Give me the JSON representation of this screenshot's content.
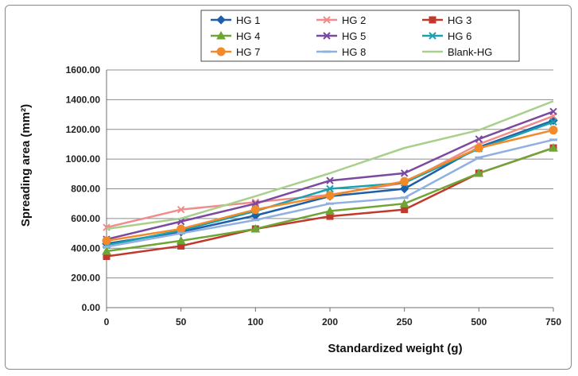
{
  "chart_data": {
    "type": "line",
    "xlabel": "Standardized weight (g)",
    "ylabel": "Spreading area (mm²)",
    "categories": [
      "0",
      "50",
      "100",
      "200",
      "250",
      "500",
      "750"
    ],
    "y_ticks": [
      "0.00",
      "200.00",
      "400.00",
      "600.00",
      "800.00",
      "1000.00",
      "1200.00",
      "1400.00",
      "1600.00"
    ],
    "ylim": [
      0,
      1600
    ],
    "grid": "horizontal",
    "legend_position": "top",
    "series": [
      {
        "name": "HG 1",
        "color": "#1f5fa8",
        "marker": "diamond",
        "values": [
          430,
          510,
          620,
          750,
          800,
          1080,
          1260
        ]
      },
      {
        "name": "HG 2",
        "color": "#f08c8c",
        "marker": "x",
        "values": [
          540,
          660,
          710,
          760,
          840,
          1100,
          1290
        ]
      },
      {
        "name": "HG 3",
        "color": "#c0392b",
        "marker": "square",
        "values": [
          345,
          415,
          530,
          615,
          660,
          905,
          1075
        ]
      },
      {
        "name": "HG 4",
        "color": "#6ea534",
        "marker": "triangle",
        "values": [
          380,
          450,
          530,
          650,
          700,
          905,
          1075
        ]
      },
      {
        "name": "HG 5",
        "color": "#7b4aa0",
        "marker": "x",
        "values": [
          460,
          580,
          700,
          855,
          905,
          1135,
          1320
        ]
      },
      {
        "name": "HG 6",
        "color": "#1aa0b0",
        "marker": "x",
        "values": [
          420,
          520,
          650,
          800,
          840,
          1070,
          1250
        ]
      },
      {
        "name": "HG 7",
        "color": "#f28a2a",
        "marker": "circle",
        "values": [
          450,
          530,
          660,
          755,
          850,
          1075,
          1195
        ]
      },
      {
        "name": "HG 8",
        "color": "#8fb0e0",
        "marker": "dash",
        "values": [
          410,
          500,
          590,
          700,
          740,
          1010,
          1130
        ]
      },
      {
        "name": "Blank-HG",
        "color": "#a8d08d",
        "marker": "none",
        "values": [
          530,
          600,
          750,
          905,
          1075,
          1195,
          1390
        ]
      }
    ]
  }
}
